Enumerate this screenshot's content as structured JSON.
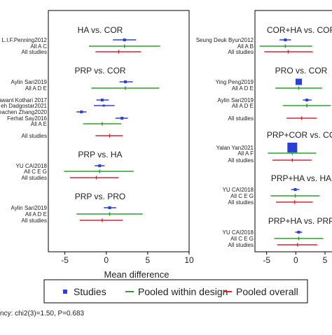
{
  "colors": {
    "studies": "#2b41d6",
    "pooled_within_design": "#2ca02c",
    "pooled_overall": "#d62738"
  },
  "chart_data": [
    {
      "type": "forest",
      "xlabel": "Mean difference",
      "xlim": [
        -7,
        10
      ],
      "xticks": [
        -5,
        0,
        5,
        10
      ],
      "ylim": [
        360,
        15
      ],
      "groups": [
        {
          "title": "HA vs. COR",
          "title_y": 43,
          "rows": [
            {
              "label": "L.I.F.Penning2012",
              "kind": "study",
              "y": 57,
              "est": 2.2,
              "lo": 0.8,
              "hi": 3.6,
              "size": 4
            },
            {
              "label": "All A C",
              "kind": "design",
              "y": 66,
              "est": 2.2,
              "lo": -2.1,
              "hi": 6.5
            },
            {
              "label": "All studies",
              "kind": "overall",
              "y": 74,
              "est": 1.5,
              "lo": -1.3,
              "hi": 4.2
            }
          ]
        },
        {
          "title": "PRP vs. COR",
          "title_y": 101,
          "rows": [
            {
              "label": "Aylin Sari2019",
              "kind": "study",
              "y": 117,
              "est": 2.3,
              "lo": 1.6,
              "hi": 3.2,
              "size": 4
            },
            {
              "label": "All A D E",
              "kind": "design",
              "y": 126,
              "est": 2.3,
              "lo": -1.8,
              "hi": 6.4
            },
            {
              "label": "awant Kothari 2017",
              "kind": "study",
              "y": 143,
              "est": -0.5,
              "lo": -1.2,
              "hi": 0.3,
              "size": 4
            },
            {
              "label": "eh Dadgostar2021",
              "kind": "study",
              "y": 151,
              "est": -0.3,
              "lo": -1.5,
              "hi": 1.0,
              "size": 3
            },
            {
              "label": "eachen Zhang2020",
              "kind": "study",
              "y": 160,
              "est": -3.0,
              "lo": -3.6,
              "hi": -2.4,
              "size": 4
            },
            {
              "label": "Ferhat Say2016",
              "kind": "study",
              "y": 169,
              "est": 1.9,
              "lo": 1.1,
              "hi": 2.6,
              "size": 4
            },
            {
              "label": "All A E",
              "kind": "design",
              "y": 177,
              "est": -0.5,
              "lo": -2.8,
              "hi": 1.8
            },
            {
              "label": "All studies",
              "kind": "overall",
              "y": 194,
              "est": 0.4,
              "lo": -1.3,
              "hi": 2.0
            }
          ]
        },
        {
          "title": "PRP vs. HA",
          "title_y": 221,
          "rows": [
            {
              "label": "YU CAI2018",
              "kind": "study",
              "y": 237,
              "est": -0.8,
              "lo": -1.4,
              "hi": -0.2,
              "size": 4
            },
            {
              "label": "All C E G",
              "kind": "design",
              "y": 245,
              "est": -0.8,
              "lo": -5.1,
              "hi": 3.3
            },
            {
              "label": "All studies",
              "kind": "overall",
              "y": 254,
              "est": -1.2,
              "lo": -4.4,
              "hi": 1.5
            }
          ]
        },
        {
          "title": "PRP vs. PRO",
          "title_y": 281,
          "rows": [
            {
              "label": "Aylin Sari2019",
              "kind": "study",
              "y": 297,
              "est": 0.4,
              "lo": -0.3,
              "hi": 1.2,
              "size": 4
            },
            {
              "label": "All A D E",
              "kind": "design",
              "y": 306,
              "est": 0.4,
              "lo": -3.6,
              "hi": 4.4
            },
            {
              "label": "All studies",
              "kind": "overall",
              "y": 315,
              "est": -0.5,
              "lo": -3.2,
              "hi": 2.0
            }
          ]
        }
      ]
    },
    {
      "type": "forest",
      "xlabel": "",
      "xlim": [
        -7,
        7.4
      ],
      "xticks": [
        -5,
        0,
        5
      ],
      "ylim": [
        360,
        15
      ],
      "groups": [
        {
          "title": "COR+HA vs. COR",
          "title_y": 43,
          "rows": [
            {
              "label": "Seung Deuk Byun2012",
              "kind": "study",
              "y": 57,
              "est": -1.8,
              "lo": -2.8,
              "hi": -0.8,
              "size": 4
            },
            {
              "label": "All A B",
              "kind": "design",
              "y": 66,
              "est": -1.8,
              "lo": -6.2,
              "hi": 2.8
            },
            {
              "label": "All studies",
              "kind": "overall",
              "y": 74,
              "est": -1.3,
              "lo": -5.4,
              "hi": 2.9
            }
          ]
        },
        {
          "title": "PRO vs. COR",
          "title_y": 101,
          "rows": [
            {
              "label": "Ying Peng2019",
              "kind": "study",
              "y": 117,
              "est": 0.5,
              "lo": 0.1,
              "hi": 0.9,
              "size": 9
            },
            {
              "label": "All A D E",
              "kind": "design",
              "y": 126,
              "est": 0.5,
              "lo": -3.5,
              "hi": 4.5
            },
            {
              "label": "Aylin Sari2019",
              "kind": "study",
              "y": 143,
              "est": 1.9,
              "lo": 1.2,
              "hi": 2.7,
              "size": 4
            },
            {
              "label": "All A D E",
              "kind": "design",
              "y": 151,
              "est": 1.9,
              "lo": -2.2,
              "hi": 6.0
            },
            {
              "label": "All studies",
              "kind": "overall",
              "y": 169,
              "est": 1.0,
              "lo": -1.6,
              "hi": 3.6
            }
          ]
        },
        {
          "title": "PRP+COR vs. CO",
          "title_y": 193,
          "rows": [
            {
              "label": "Yalan Yan2021",
              "kind": "study",
              "y": 211,
              "est": -0.6,
              "lo": -1.4,
              "hi": 0.2,
              "size": 14
            },
            {
              "label": "All A F",
              "kind": "design",
              "y": 219,
              "est": -0.6,
              "lo": -4.8,
              "hi": 3.5
            },
            {
              "label": "All studies",
              "kind": "overall",
              "y": 229,
              "est": -0.6,
              "lo": -4.0,
              "hi": 2.7
            }
          ]
        },
        {
          "title": "PRP+HA vs. HA",
          "title_y": 255,
          "rows": [
            {
              "label": "YU CAI2018",
              "kind": "study",
              "y": 271,
              "est": -0.1,
              "lo": -0.8,
              "hi": 0.6,
              "size": 4
            },
            {
              "label": "All C E G",
              "kind": "design",
              "y": 280,
              "est": -0.1,
              "lo": -4.3,
              "hi": 4.1
            },
            {
              "label": "All studies",
              "kind": "overall",
              "y": 289,
              "est": -0.2,
              "lo": -3.4,
              "hi": 2.9
            }
          ]
        },
        {
          "title": "PRP+HA vs. PRP",
          "title_y": 316,
          "rows": [
            {
              "label": "YU CAI2018",
              "kind": "study",
              "y": 332,
              "est": 0.5,
              "lo": -0.1,
              "hi": 1.1,
              "size": 4
            },
            {
              "label": "All C E G",
              "kind": "design",
              "y": 341,
              "est": 0.5,
              "lo": -3.7,
              "hi": 4.7
            },
            {
              "label": "All studies",
              "kind": "overall",
              "y": 350,
              "est": 0.3,
              "lo": -3.2,
              "hi": 3.7
            }
          ]
        }
      ]
    }
  ],
  "legend": {
    "items": [
      {
        "label": "Studies",
        "kind": "study"
      },
      {
        "label": "Pooled within design",
        "kind": "design"
      },
      {
        "label": "Pooled overall",
        "kind": "overall"
      }
    ]
  },
  "footer": {
    "text": "ncy: chi2(3)=1.50, P=0.683"
  }
}
